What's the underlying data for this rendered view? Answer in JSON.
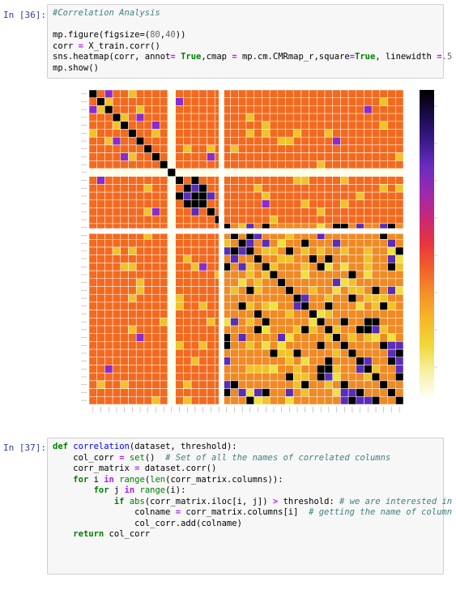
{
  "cells": [
    {
      "prompt": "In [36]:",
      "lines": [
        [
          {
            "t": "#Correlation Analysis",
            "c": "cm"
          }
        ],
        [],
        [
          {
            "t": "mp.figure(figsize=("
          },
          {
            "t": "80",
            "c": "num"
          },
          {
            "t": ","
          },
          {
            "t": "40",
            "c": "num"
          },
          {
            "t": "))"
          }
        ],
        [
          {
            "t": "corr "
          },
          {
            "t": "=",
            "c": "op"
          },
          {
            "t": " X_train.corr()"
          }
        ],
        [
          {
            "t": "sns.heatmap(corr, annot"
          },
          {
            "t": "=",
            "c": "op"
          },
          {
            "t": " "
          },
          {
            "t": "True",
            "c": "kw"
          },
          {
            "t": ",cmap "
          },
          {
            "t": "=",
            "c": "op"
          },
          {
            "t": " mp.cm.CMRmap_r,square"
          },
          {
            "t": "=",
            "c": "op"
          },
          {
            "t": "True",
            "c": "kw"
          },
          {
            "t": ", linewidth "
          },
          {
            "t": "=",
            "c": "op"
          },
          {
            "t": ".5",
            "c": "num"
          }
        ],
        [
          {
            "t": "mp.show()"
          }
        ]
      ]
    },
    {
      "prompt": "In [37]:",
      "lines": [
        [
          {
            "t": "def",
            "c": "kw"
          },
          {
            "t": " "
          },
          {
            "t": "correlation",
            "c": "fn"
          },
          {
            "t": "(dataset, threshold):"
          }
        ],
        [
          {
            "t": "    col_corr "
          },
          {
            "t": "=",
            "c": "op"
          },
          {
            "t": " "
          },
          {
            "t": "set",
            "c": "bi"
          },
          {
            "t": "()  "
          },
          {
            "t": "# Set of all the names of correlated columns",
            "c": "cm"
          }
        ],
        [
          {
            "t": "    corr_matrix "
          },
          {
            "t": "=",
            "c": "op"
          },
          {
            "t": " dataset.corr()"
          }
        ],
        [
          {
            "t": "    "
          },
          {
            "t": "for",
            "c": "kw"
          },
          {
            "t": " i "
          },
          {
            "t": "in",
            "c": "op"
          },
          {
            "t": " "
          },
          {
            "t": "range",
            "c": "bi"
          },
          {
            "t": "("
          },
          {
            "t": "len",
            "c": "bi"
          },
          {
            "t": "(corr_matrix.columns)):"
          }
        ],
        [
          {
            "t": "        "
          },
          {
            "t": "for",
            "c": "kw"
          },
          {
            "t": " j "
          },
          {
            "t": "in",
            "c": "op"
          },
          {
            "t": " "
          },
          {
            "t": "range",
            "c": "bi"
          },
          {
            "t": "(i):"
          }
        ],
        [
          {
            "t": "            "
          },
          {
            "t": "if",
            "c": "kw"
          },
          {
            "t": " "
          },
          {
            "t": "abs",
            "c": "bi"
          },
          {
            "t": "(corr_matrix.iloc[i, j]) "
          },
          {
            "t": ">",
            "c": "op"
          },
          {
            "t": " threshold: "
          },
          {
            "t": "# we are interested in",
            "c": "cm"
          }
        ],
        [
          {
            "t": "                colname "
          },
          {
            "t": "=",
            "c": "op"
          },
          {
            "t": " corr_matrix.columns[i]  "
          },
          {
            "t": "# getting the name of column",
            "c": "cm"
          }
        ],
        [
          {
            "t": "                col_corr.add(colname)"
          }
        ],
        [
          {
            "t": "    "
          },
          {
            "t": "return",
            "c": "kw"
          },
          {
            "t": " col_corr"
          }
        ]
      ]
    }
  ],
  "heatmap": {
    "n": 40,
    "cmap": "CMRmap_r",
    "colors": {
      "low": "#f26a1f",
      "mid": "#f08a24",
      "high": "#f2c229",
      "neg": "#f0e040",
      "purple": "#5a2cb8",
      "violet": "#8a2bd0",
      "black": "#000000",
      "white": "#fffde8",
      "cellborder": "#ffffff"
    },
    "colorbar": [
      "#000000",
      "#1a0b4a",
      "#3a1a8c",
      "#6a2cc0",
      "#9a2ab0",
      "#c8287a",
      "#e8343e",
      "#f2602a",
      "#f5902a",
      "#f5b82a",
      "#f0d838",
      "#f5f0a0",
      "#fffef0"
    ]
  }
}
